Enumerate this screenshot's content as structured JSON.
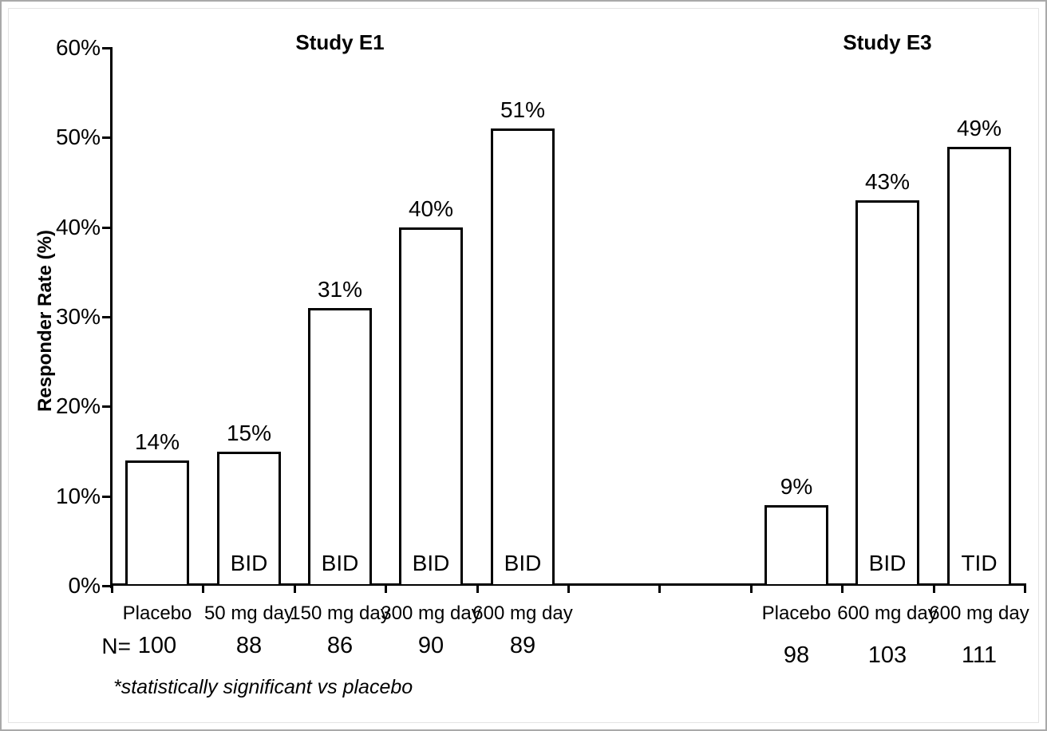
{
  "chart_data": {
    "type": "bar",
    "ylabel": "Responder Rate (%)",
    "ylim": [
      0,
      60
    ],
    "grid": false,
    "legend": "none",
    "total_slots": 10,
    "yticks": [
      {
        "value": 0,
        "label": "0%"
      },
      {
        "value": 10,
        "label": "10%"
      },
      {
        "value": 20,
        "label": "20%"
      },
      {
        "value": 30,
        "label": "30%"
      },
      {
        "value": 40,
        "label": "40%"
      },
      {
        "value": 50,
        "label": "50%"
      },
      {
        "value": 60,
        "label": "60%"
      }
    ],
    "groups": [
      {
        "title": "Study E1",
        "slots": [
          0,
          1,
          2,
          3,
          4
        ],
        "bars": [
          {
            "category": "Placebo",
            "value": 14,
            "value_label": "14%",
            "regimen": "",
            "n": "100"
          },
          {
            "category": "50 mg day",
            "value": 15,
            "value_label": "15%",
            "regimen": "BID",
            "n": "88"
          },
          {
            "category": "150 mg day",
            "value": 31,
            "value_label": "31%",
            "regimen": "BID",
            "n": "86"
          },
          {
            "category": "300 mg day",
            "value": 40,
            "value_label": "40%",
            "regimen": "BID",
            "n": "90"
          },
          {
            "category": "600 mg day",
            "value": 51,
            "value_label": "51%",
            "regimen": "BID",
            "n": "89"
          }
        ]
      },
      {
        "title": "Study E3",
        "slots": [
          7,
          8,
          9
        ],
        "bars": [
          {
            "category": "Placebo",
            "value": 9,
            "value_label": "9%",
            "regimen": "",
            "n": "98"
          },
          {
            "category": "600 mg day",
            "value": 43,
            "value_label": "43%",
            "regimen": "BID",
            "n": "103"
          },
          {
            "category": "600 mg day",
            "value": 49,
            "value_label": "49%",
            "regimen": "TID",
            "n": "111"
          }
        ]
      }
    ],
    "n_prefix": "N=",
    "footnote": "*statistically significant vs placebo"
  },
  "colors": {
    "text": "#000000",
    "axis": "#000000",
    "bar_fill": "#ffffff",
    "bar_border": "#000000",
    "background": "#ffffff",
    "outer_border": "#a9a9a9",
    "inner_border": "#e4e4e4"
  }
}
